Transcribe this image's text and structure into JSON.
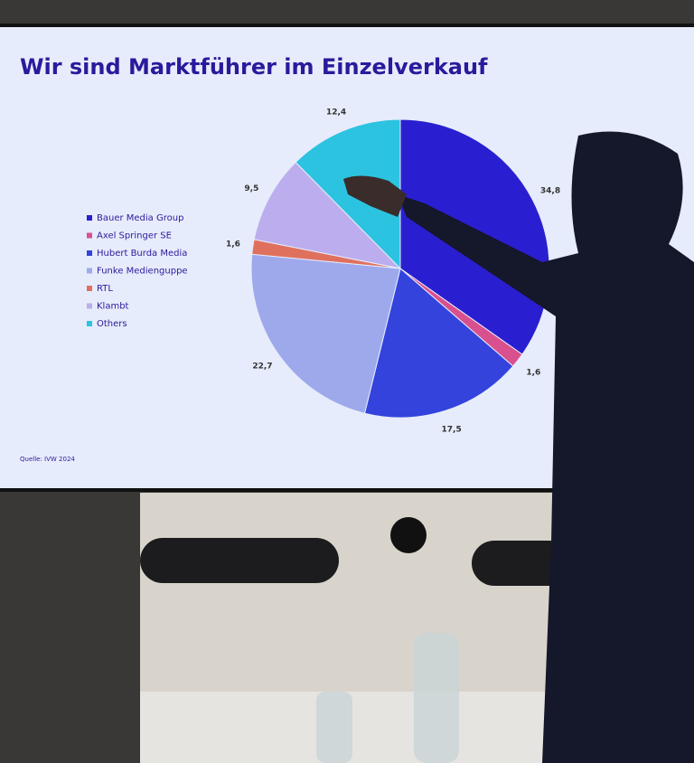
{
  "chart_data": {
    "type": "pie",
    "title": "Wir sind Marktführer im Einzelverkauf",
    "source": "Quelle: IVW 2024",
    "categories": [
      "Bauer Media Group",
      "Axel Springer SE",
      "Hubert Burda Media",
      "Funke Medienguppe",
      "RTL",
      "Klambt",
      "Others"
    ],
    "values": [
      34.8,
      1.6,
      17.5,
      22.7,
      1.6,
      9.5,
      12.4
    ],
    "value_labels": [
      "34,8",
      "1,6",
      "17,5",
      "22,7",
      "1,6",
      "9,5",
      "12,4"
    ],
    "colors": [
      "#2a1fd0",
      "#d9508e",
      "#3343dc",
      "#9ea9ec",
      "#e0705e",
      "#bcaeee",
      "#2cc3e0"
    ]
  }
}
